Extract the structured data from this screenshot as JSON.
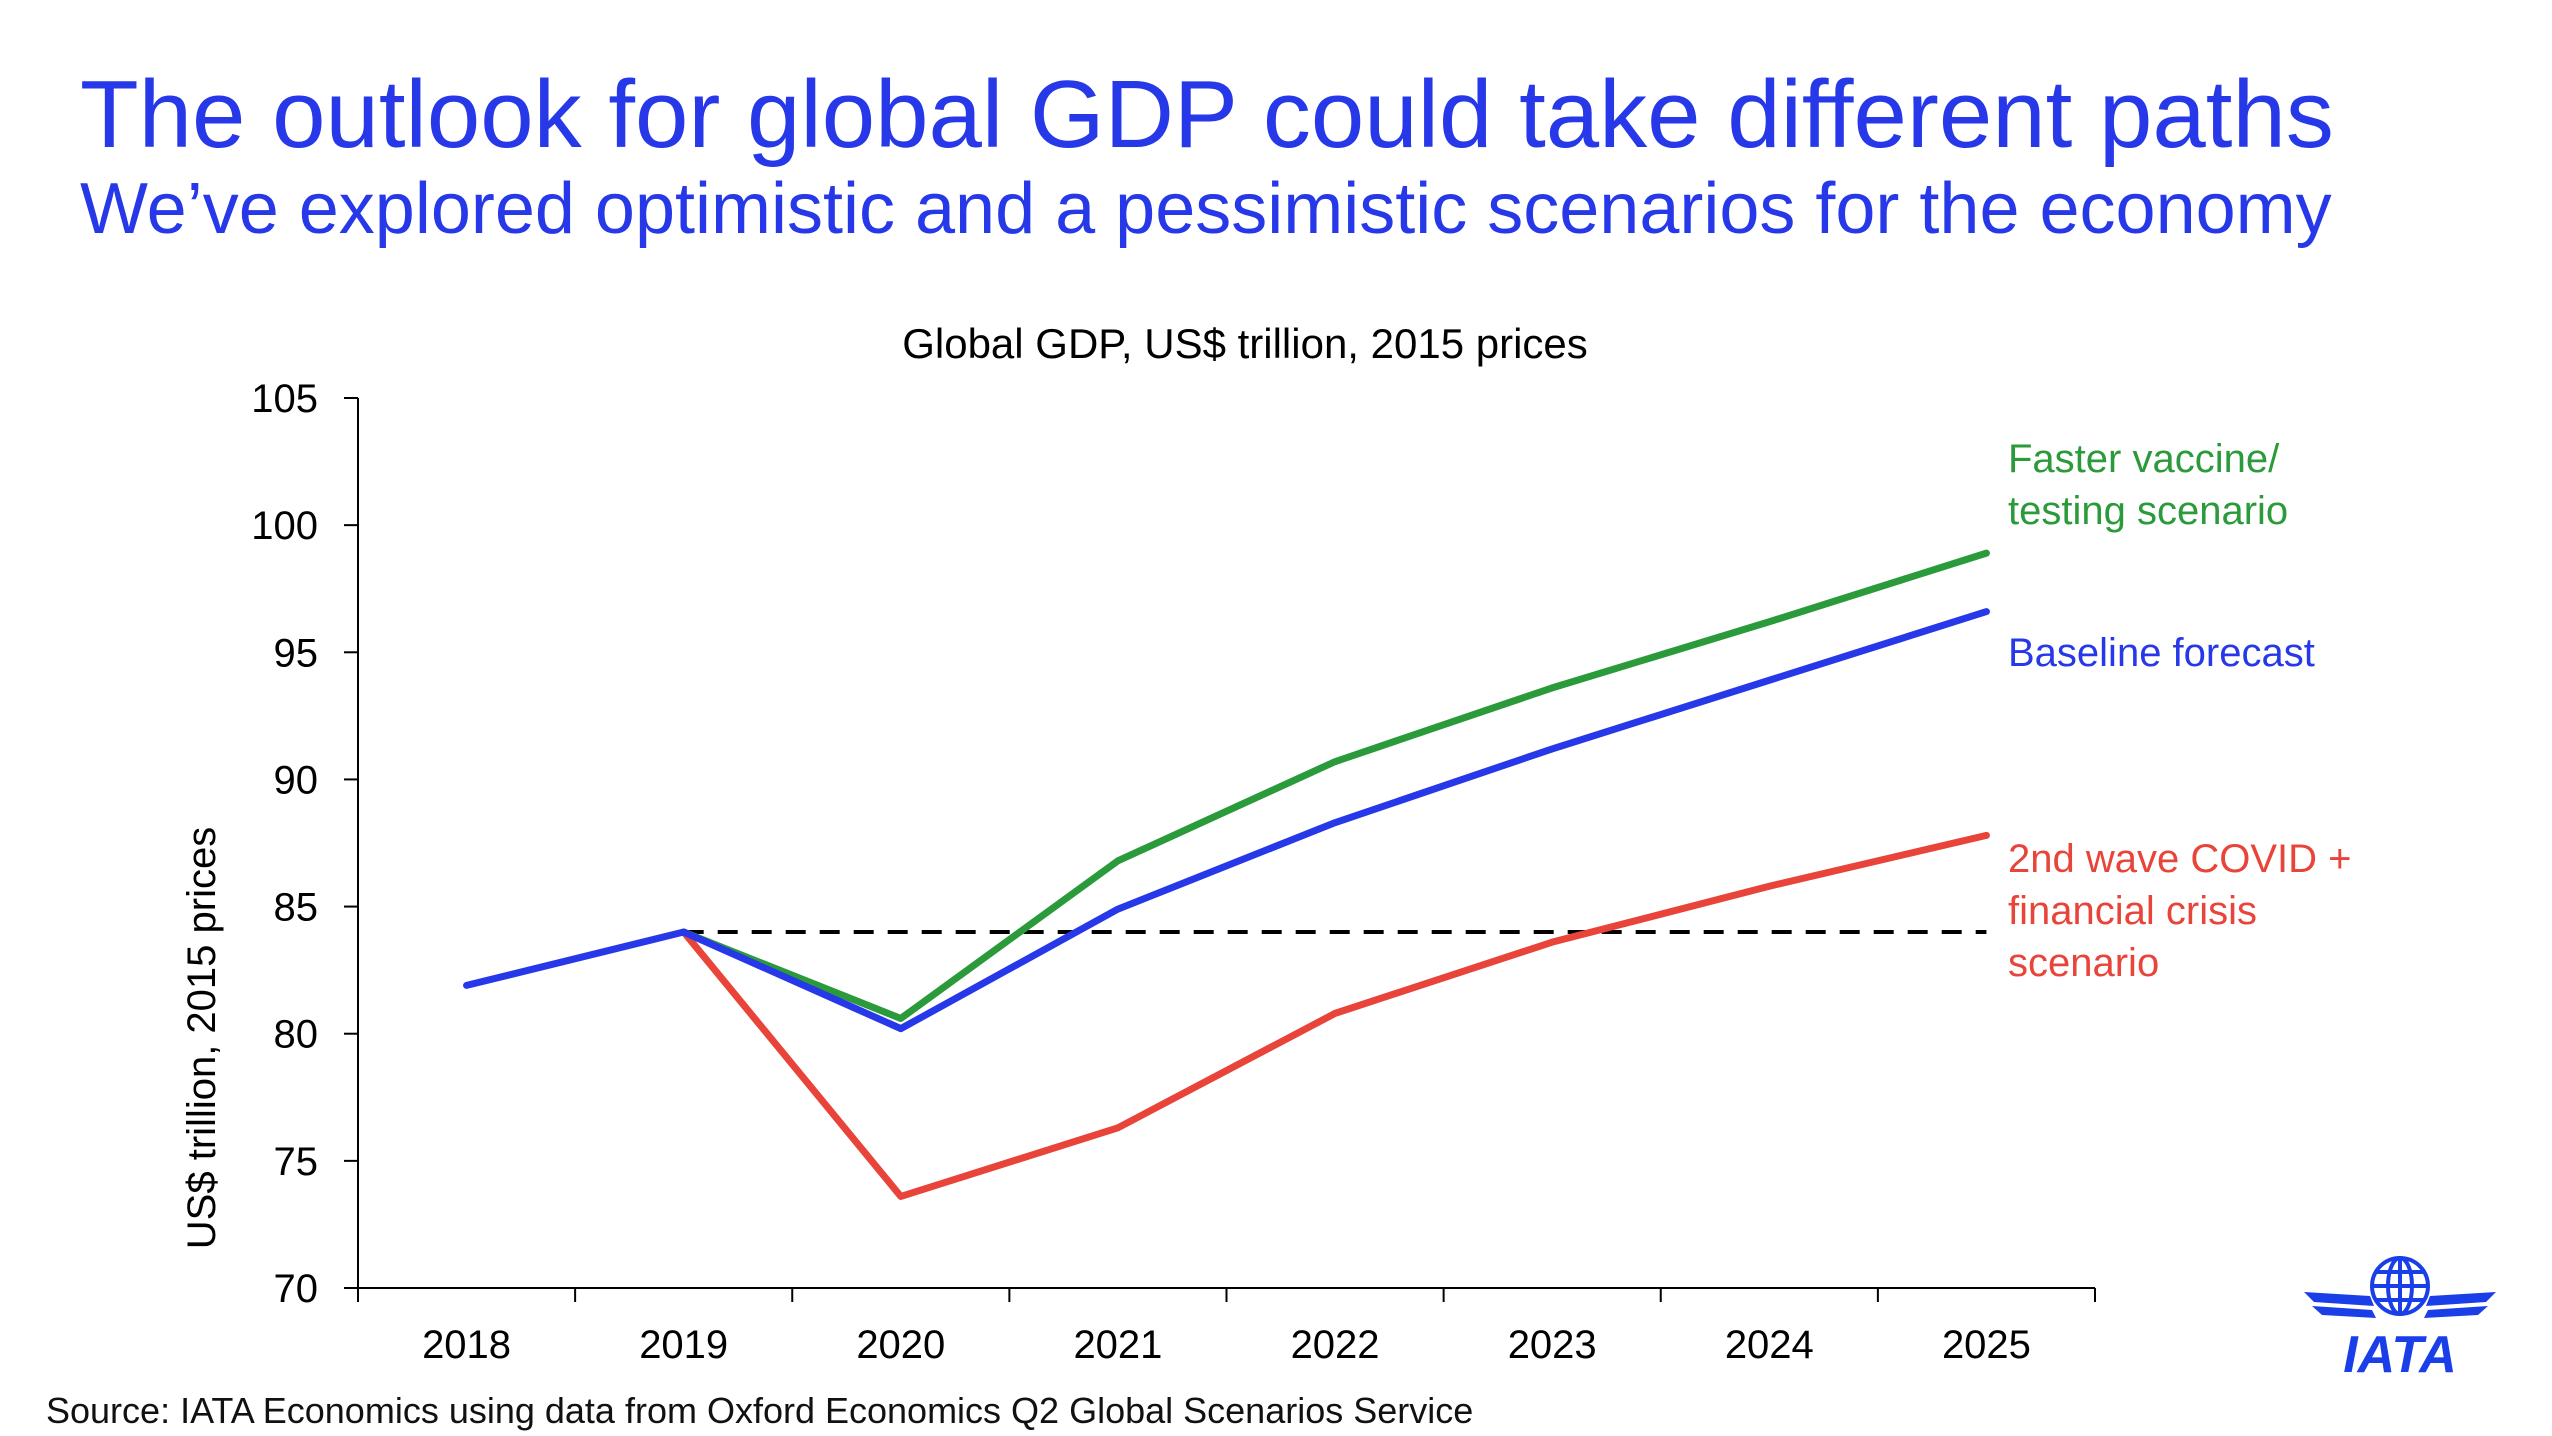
{
  "header": {
    "title": "The outlook for global GDP could take different paths",
    "subtitle": "We’ve explored optimistic and a pessimistic scenarios for the economy"
  },
  "footer": {
    "source": "Source: IATA Economics using data from Oxford Economics Q2 Global Scenarios Service"
  },
  "logo": {
    "text": "IATA",
    "color": "#1a3ee8",
    "icon": "iata-globe-wings-logo"
  },
  "chart_data": {
    "type": "line",
    "title": "Global GDP, US$ trillion, 2015 prices",
    "xlabel": "",
    "ylabel": "US$ trillion, 2015 prices",
    "categories": [
      "2018",
      "2019",
      "2020",
      "2021",
      "2022",
      "2023",
      "2024",
      "2025"
    ],
    "ylim": [
      70,
      105
    ],
    "yticks": [
      70,
      75,
      80,
      85,
      90,
      95,
      100,
      105
    ],
    "grid": false,
    "series": [
      {
        "name": "Faster vaccine/ testing scenario",
        "label_lines": [
          "Faster vaccine/",
          "testing scenario"
        ],
        "color": "#2a9a3a",
        "start_index": 1,
        "values": [
          null,
          84.0,
          80.6,
          86.8,
          90.7,
          93.6,
          96.2,
          98.9
        ]
      },
      {
        "name": "Baseline forecast",
        "label_lines": [
          "Baseline forecast"
        ],
        "color": "#2638e8",
        "start_index": 0,
        "values": [
          81.9,
          84.0,
          80.2,
          84.9,
          88.3,
          91.2,
          93.9,
          96.6
        ]
      },
      {
        "name": "2nd wave COVID + financial crisis scenario",
        "label_lines": [
          "2nd wave COVID +",
          "financial crisis",
          "scenario"
        ],
        "color": "#e8443a",
        "start_index": 1,
        "values": [
          null,
          84.0,
          73.6,
          76.3,
          80.8,
          83.6,
          85.8,
          87.8
        ]
      }
    ],
    "reference_line": {
      "value": 84.0,
      "from_index": 1,
      "to_index": 7,
      "style": "dashed",
      "color": "#000000"
    }
  }
}
